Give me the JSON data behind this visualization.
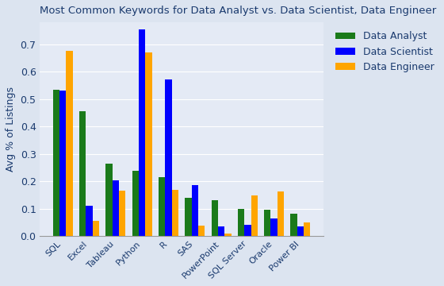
{
  "title": "Most Common Keywords for Data Analyst vs. Data Scientist, Data Engineer",
  "ylabel": "Avg % of Listings",
  "categories": [
    "SQL",
    "Excel",
    "Tableau",
    "Python",
    "R",
    "SAS",
    "PowerPoint",
    "SQL Server",
    "Oracle",
    "Power BI"
  ],
  "data_analyst": [
    0.535,
    0.455,
    0.265,
    0.238,
    0.215,
    0.138,
    0.13,
    0.1,
    0.095,
    0.08
  ],
  "data_scientist": [
    0.53,
    0.11,
    0.202,
    0.755,
    0.57,
    0.185,
    0.035,
    0.042,
    0.065,
    0.035
  ],
  "data_engineer": [
    0.675,
    0.055,
    0.165,
    0.67,
    0.168,
    0.038,
    0.01,
    0.148,
    0.162,
    0.05
  ],
  "color_analyst": "#1a7a1a",
  "color_scientist": "#0000ff",
  "color_engineer": "#ffa500",
  "legend_labels": [
    "Data Analyst",
    "Data Scientist",
    "Data Engineer"
  ],
  "ylim": [
    0,
    0.78
  ],
  "fig_bg_color": "#dce4f0",
  "plot_bg_color": "#e4eaf5",
  "title_color": "#1a3a6e",
  "axis_label_color": "#1a3a6e",
  "tick_label_color": "#1a3a6e",
  "bar_width": 0.25
}
